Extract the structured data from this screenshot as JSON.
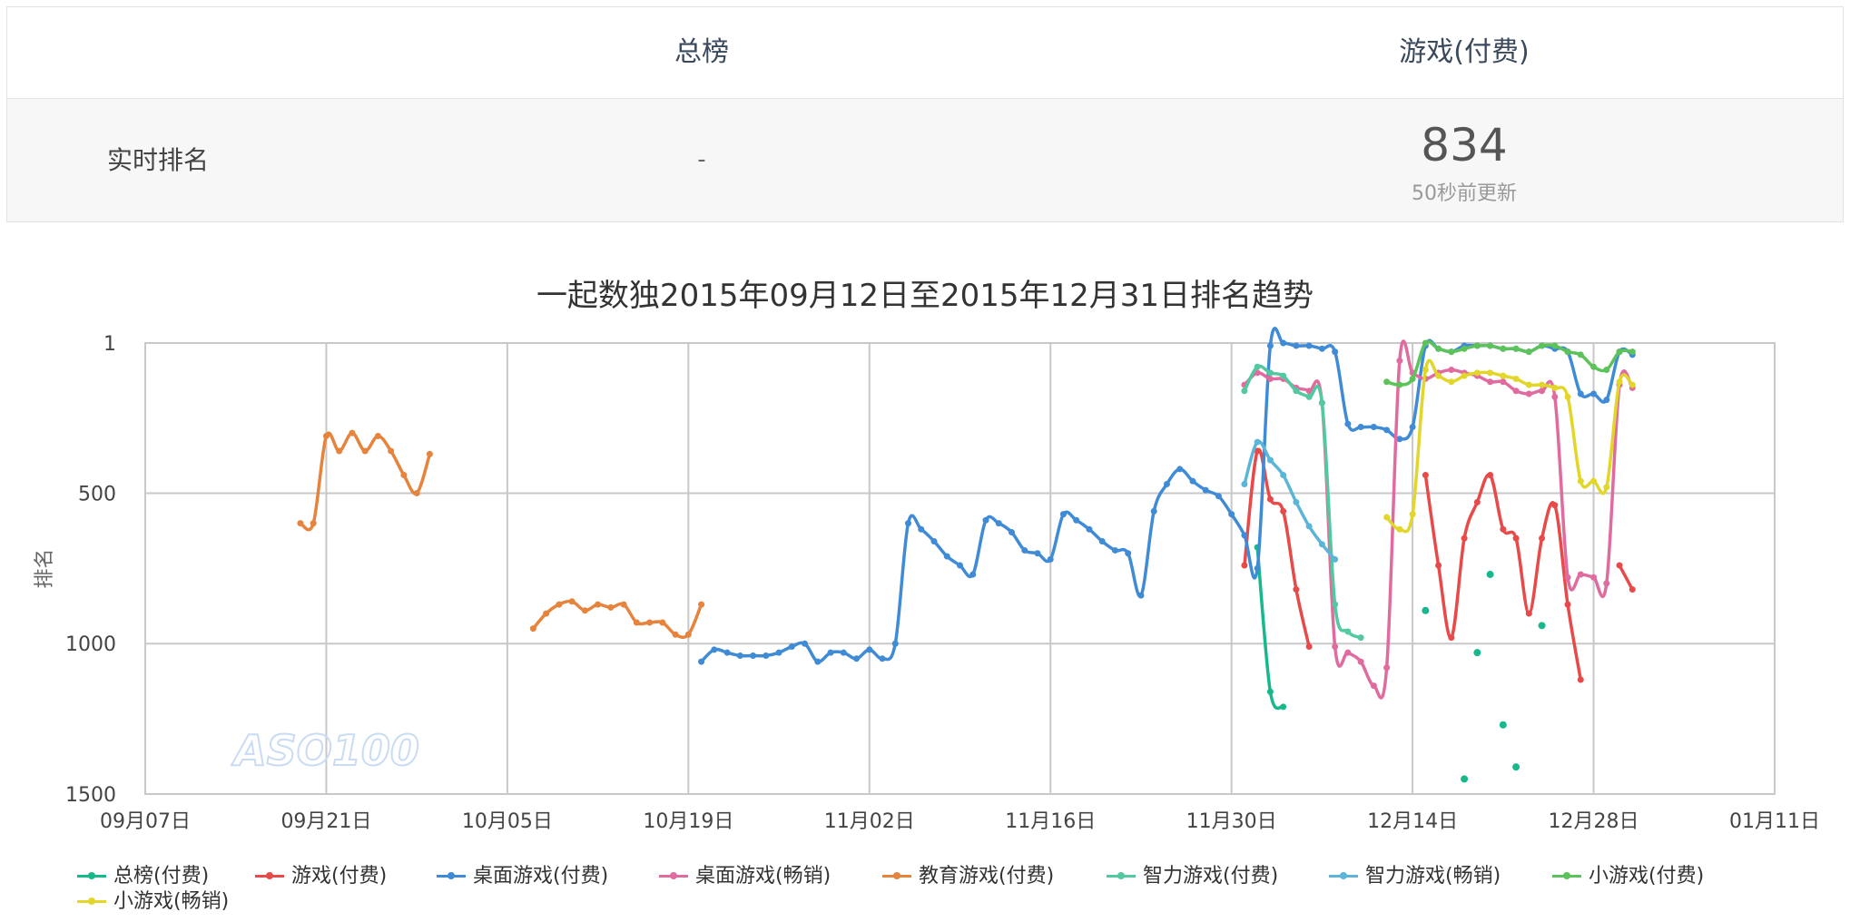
{
  "rank_table": {
    "columns": [
      "总榜",
      "游戏(付费)"
    ],
    "row_label": "实时排名",
    "values": [
      "-",
      "834"
    ],
    "updated": "50秒前更新"
  },
  "chart_data": {
    "type": "line",
    "title": "一起数独2015年09月12日至2015年12月31日排名趋势",
    "ylabel": "排名",
    "y_reversed": true,
    "ylim": [
      1,
      1500
    ],
    "yticks": [
      "1",
      "500",
      "1000",
      "1500"
    ],
    "xlim": [
      "2015-09-07",
      "2016-01-11"
    ],
    "xticks": [
      "09月07日",
      "09月21日",
      "10月05日",
      "10月19日",
      "11月02日",
      "11月16日",
      "11月30日",
      "12月14日",
      "12月28日",
      "01月11日"
    ],
    "grid": true,
    "legend": "bottom",
    "watermark": "ASO100",
    "series": [
      {
        "name": "总榜(付费)",
        "color": "#17b98c",
        "points": [
          [
            "2015-12-02",
            680
          ],
          [
            "2015-12-03",
            1160
          ],
          [
            "2015-12-04",
            1210
          ]
        ]
      },
      {
        "name": "游戏(付费)",
        "color": "#e84a4a",
        "points": [
          [
            "2015-12-01",
            740
          ],
          [
            "2015-12-02",
            360
          ],
          [
            "2015-12-03",
            520
          ],
          [
            "2015-12-04",
            560
          ],
          [
            "2015-12-05",
            820
          ],
          [
            "2015-12-06",
            1010
          ],
          [
            "2015-12-15",
            440
          ],
          [
            "2015-12-16",
            740
          ],
          [
            "2015-12-17",
            980
          ],
          [
            "2015-12-18",
            650
          ],
          [
            "2015-12-19",
            530
          ],
          [
            "2015-12-20",
            440
          ],
          [
            "2015-12-21",
            620
          ],
          [
            "2015-12-22",
            650
          ],
          [
            "2015-12-23",
            900
          ],
          [
            "2015-12-24",
            650
          ],
          [
            "2015-12-25",
            540
          ],
          [
            "2015-12-26",
            870
          ],
          [
            "2015-12-27",
            1120
          ],
          [
            "2015-12-30",
            740
          ],
          [
            "2015-12-31",
            820
          ]
        ]
      },
      {
        "name": "桌面游戏(付费)",
        "color": "#3f8bd6",
        "points": [
          [
            "2015-10-20",
            1060
          ],
          [
            "2015-10-21",
            1020
          ],
          [
            "2015-10-22",
            1030
          ],
          [
            "2015-10-23",
            1040
          ],
          [
            "2015-10-24",
            1040
          ],
          [
            "2015-10-25",
            1040
          ],
          [
            "2015-10-26",
            1030
          ],
          [
            "2015-10-27",
            1010
          ],
          [
            "2015-10-28",
            1000
          ],
          [
            "2015-10-29",
            1060
          ],
          [
            "2015-10-30",
            1030
          ],
          [
            "2015-10-31",
            1030
          ],
          [
            "2015-11-01",
            1050
          ],
          [
            "2015-11-02",
            1020
          ],
          [
            "2015-11-03",
            1050
          ],
          [
            "2015-11-04",
            1000
          ],
          [
            "2015-11-05",
            600
          ],
          [
            "2015-11-06",
            620
          ],
          [
            "2015-11-07",
            660
          ],
          [
            "2015-11-08",
            710
          ],
          [
            "2015-11-09",
            740
          ],
          [
            "2015-11-10",
            770
          ],
          [
            "2015-11-11",
            590
          ],
          [
            "2015-11-12",
            600
          ],
          [
            "2015-11-13",
            630
          ],
          [
            "2015-11-14",
            690
          ],
          [
            "2015-11-15",
            700
          ],
          [
            "2015-11-16",
            720
          ],
          [
            "2015-11-17",
            570
          ],
          [
            "2015-11-18",
            590
          ],
          [
            "2015-11-19",
            620
          ],
          [
            "2015-11-20",
            660
          ],
          [
            "2015-11-21",
            690
          ],
          [
            "2015-11-22",
            700
          ],
          [
            "2015-11-23",
            840
          ],
          [
            "2015-11-24",
            560
          ],
          [
            "2015-11-25",
            470
          ],
          [
            "2015-11-26",
            420
          ],
          [
            "2015-11-27",
            460
          ],
          [
            "2015-11-28",
            490
          ],
          [
            "2015-11-29",
            510
          ],
          [
            "2015-11-30",
            570
          ],
          [
            "2015-12-01",
            640
          ],
          [
            "2015-12-02",
            750
          ],
          [
            "2015-12-03",
            10
          ],
          [
            "2015-12-04",
            1
          ],
          [
            "2015-12-05",
            10
          ],
          [
            "2015-12-06",
            10
          ],
          [
            "2015-12-07",
            20
          ],
          [
            "2015-12-08",
            30
          ],
          [
            "2015-12-09",
            270
          ],
          [
            "2015-12-10",
            280
          ],
          [
            "2015-12-11",
            280
          ],
          [
            "2015-12-12",
            290
          ],
          [
            "2015-12-13",
            320
          ],
          [
            "2015-12-14",
            280
          ],
          [
            "2015-12-15",
            10
          ],
          [
            "2015-12-16",
            20
          ],
          [
            "2015-12-17",
            30
          ],
          [
            "2015-12-18",
            10
          ],
          [
            "2015-12-19",
            10
          ],
          [
            "2015-12-20",
            10
          ],
          [
            "2015-12-21",
            20
          ],
          [
            "2015-12-22",
            20
          ],
          [
            "2015-12-23",
            30
          ],
          [
            "2015-12-24",
            10
          ],
          [
            "2015-12-25",
            20
          ],
          [
            "2015-12-26",
            30
          ],
          [
            "2015-12-27",
            170
          ],
          [
            "2015-12-28",
            170
          ],
          [
            "2015-12-29",
            190
          ],
          [
            "2015-12-30",
            30
          ],
          [
            "2015-12-31",
            40
          ]
        ]
      },
      {
        "name": "桌面游戏(畅销)",
        "color": "#e06c9f",
        "points": [
          [
            "2015-12-01",
            140
          ],
          [
            "2015-12-02",
            100
          ],
          [
            "2015-12-03",
            120
          ],
          [
            "2015-12-04",
            120
          ],
          [
            "2015-12-05",
            150
          ],
          [
            "2015-12-06",
            160
          ],
          [
            "2015-12-07",
            200
          ],
          [
            "2015-12-08",
            1010
          ],
          [
            "2015-12-09",
            1030
          ],
          [
            "2015-12-10",
            1060
          ],
          [
            "2015-12-11",
            1140
          ],
          [
            "2015-12-12",
            1080
          ],
          [
            "2015-12-13",
            60
          ],
          [
            "2015-12-14",
            100
          ],
          [
            "2015-12-15",
            120
          ],
          [
            "2015-12-16",
            100
          ],
          [
            "2015-12-17",
            90
          ],
          [
            "2015-12-18",
            100
          ],
          [
            "2015-12-19",
            110
          ],
          [
            "2015-12-20",
            130
          ],
          [
            "2015-12-21",
            130
          ],
          [
            "2015-12-22",
            160
          ],
          [
            "2015-12-23",
            170
          ],
          [
            "2015-12-24",
            160
          ],
          [
            "2015-12-25",
            180
          ],
          [
            "2015-12-26",
            780
          ],
          [
            "2015-12-27",
            770
          ],
          [
            "2015-12-28",
            780
          ],
          [
            "2015-12-29",
            800
          ],
          [
            "2015-12-30",
            140
          ],
          [
            "2015-12-31",
            150
          ]
        ]
      },
      {
        "name": "教育游戏(付费)",
        "color": "#e6833c",
        "points": [
          [
            "2015-09-19",
            600
          ],
          [
            "2015-09-20",
            600
          ],
          [
            "2015-09-21",
            310
          ],
          [
            "2015-09-22",
            360
          ],
          [
            "2015-09-23",
            300
          ],
          [
            "2015-09-24",
            360
          ],
          [
            "2015-09-25",
            310
          ],
          [
            "2015-09-26",
            360
          ],
          [
            "2015-09-27",
            440
          ],
          [
            "2015-09-28",
            500
          ],
          [
            "2015-09-29",
            370
          ],
          [
            "2015-10-07",
            950
          ],
          [
            "2015-10-08",
            900
          ],
          [
            "2015-10-09",
            870
          ],
          [
            "2015-10-10",
            860
          ],
          [
            "2015-10-11",
            890
          ],
          [
            "2015-10-12",
            870
          ],
          [
            "2015-10-13",
            880
          ],
          [
            "2015-10-14",
            870
          ],
          [
            "2015-10-15",
            930
          ],
          [
            "2015-10-16",
            930
          ],
          [
            "2015-10-17",
            930
          ],
          [
            "2015-10-18",
            970
          ],
          [
            "2015-10-19",
            970
          ],
          [
            "2015-10-20",
            870
          ]
        ]
      },
      {
        "name": "智力游戏(付费)",
        "color": "#52c9a0",
        "points": [
          [
            "2015-12-01",
            160
          ],
          [
            "2015-12-02",
            80
          ],
          [
            "2015-12-03",
            100
          ],
          [
            "2015-12-04",
            110
          ],
          [
            "2015-12-05",
            160
          ],
          [
            "2015-12-06",
            180
          ],
          [
            "2015-12-07",
            200
          ],
          [
            "2015-12-08",
            870
          ],
          [
            "2015-12-09",
            960
          ],
          [
            "2015-12-10",
            980
          ]
        ]
      },
      {
        "name": "智力游戏(畅销)",
        "color": "#5ab5d8",
        "points": [
          [
            "2015-12-01",
            470
          ],
          [
            "2015-12-02",
            330
          ],
          [
            "2015-12-03",
            390
          ],
          [
            "2015-12-04",
            440
          ],
          [
            "2015-12-05",
            530
          ],
          [
            "2015-12-06",
            610
          ],
          [
            "2015-12-07",
            670
          ],
          [
            "2015-12-08",
            720
          ]
        ]
      },
      {
        "name": "小游戏(付费)",
        "color": "#5cc25a",
        "points": [
          [
            "2015-12-12",
            130
          ],
          [
            "2015-12-13",
            140
          ],
          [
            "2015-12-14",
            120
          ],
          [
            "2015-12-15",
            1
          ],
          [
            "2015-12-16",
            20
          ],
          [
            "2015-12-17",
            30
          ],
          [
            "2015-12-18",
            20
          ],
          [
            "2015-12-19",
            10
          ],
          [
            "2015-12-20",
            10
          ],
          [
            "2015-12-21",
            20
          ],
          [
            "2015-12-22",
            20
          ],
          [
            "2015-12-23",
            30
          ],
          [
            "2015-12-24",
            10
          ],
          [
            "2015-12-25",
            10
          ],
          [
            "2015-12-26",
            30
          ],
          [
            "2015-12-27",
            40
          ],
          [
            "2015-12-28",
            80
          ],
          [
            "2015-12-29",
            90
          ],
          [
            "2015-12-30",
            30
          ],
          [
            "2015-12-31",
            30
          ]
        ]
      },
      {
        "name": "小游戏(畅销)",
        "color": "#e2d62a",
        "points": [
          [
            "2015-12-12",
            580
          ],
          [
            "2015-12-13",
            620
          ],
          [
            "2015-12-14",
            570
          ],
          [
            "2015-12-15",
            90
          ],
          [
            "2015-12-16",
            110
          ],
          [
            "2015-12-17",
            130
          ],
          [
            "2015-12-18",
            110
          ],
          [
            "2015-12-19",
            100
          ],
          [
            "2015-12-20",
            100
          ],
          [
            "2015-12-21",
            110
          ],
          [
            "2015-12-22",
            120
          ],
          [
            "2015-12-23",
            140
          ],
          [
            "2015-12-24",
            140
          ],
          [
            "2015-12-25",
            150
          ],
          [
            "2015-12-26",
            180
          ],
          [
            "2015-12-27",
            460
          ],
          [
            "2015-12-28",
            460
          ],
          [
            "2015-12-29",
            480
          ],
          [
            "2015-12-30",
            130
          ],
          [
            "2015-12-31",
            140
          ]
        ]
      }
    ],
    "markers_only": [
      {
        "series": "总榜(付费)",
        "points": [
          [
            "2015-12-15",
            890
          ],
          [
            "2015-12-18",
            1450
          ],
          [
            "2015-12-19",
            1030
          ],
          [
            "2015-12-20",
            770
          ],
          [
            "2015-12-21",
            1270
          ],
          [
            "2015-12-22",
            1410
          ],
          [
            "2015-12-24",
            940
          ]
        ]
      }
    ]
  }
}
